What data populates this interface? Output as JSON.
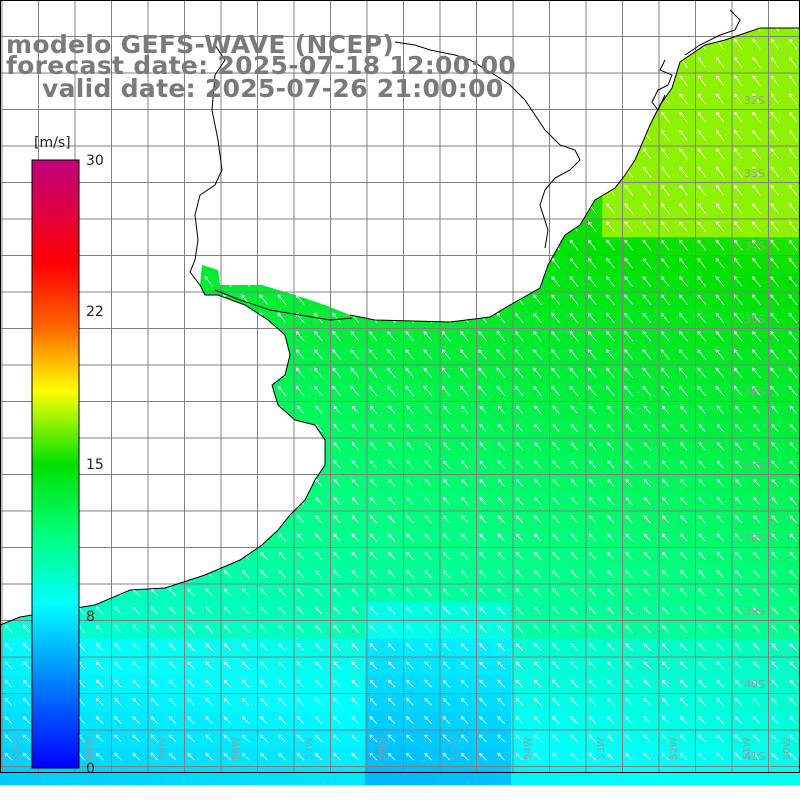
{
  "title": {
    "line1": "modelo GEFS-WAVE (NCEP)",
    "line2": "forecast date: 2025-07-18 12:00:00",
    "line3": "valid date: 2025-07-26 21:00:00"
  },
  "colorbar": {
    "unit": "[m/s]",
    "ticks": [
      "30",
      "22",
      "15",
      "8",
      "0"
    ],
    "tick_values": [
      30,
      22,
      15,
      8,
      0
    ],
    "range": [
      0,
      30
    ],
    "colors": [
      "#0000ff",
      "#00a0ff",
      "#00ffff",
      "#00ff40",
      "#40e000",
      "#ffff00",
      "#ff8000",
      "#ff0000",
      "#c00080"
    ]
  },
  "grid": {
    "lat_labels": [
      "32S",
      "33S",
      "34S",
      "35S",
      "36S",
      "37S",
      "38S",
      "39S",
      "40S",
      "41S"
    ],
    "lon_labels": [
      "61W",
      "60W",
      "59W",
      "58W",
      "57W",
      "56W",
      "55W",
      "54W",
      "53W",
      "52W",
      "51W",
      "50W"
    ]
  },
  "map": {
    "field": "wind speed with direction arrows",
    "land_color": "#ffffff",
    "coast_color": "#000000",
    "grid_color": "#808080",
    "arrow_color": "#ffffff"
  }
}
